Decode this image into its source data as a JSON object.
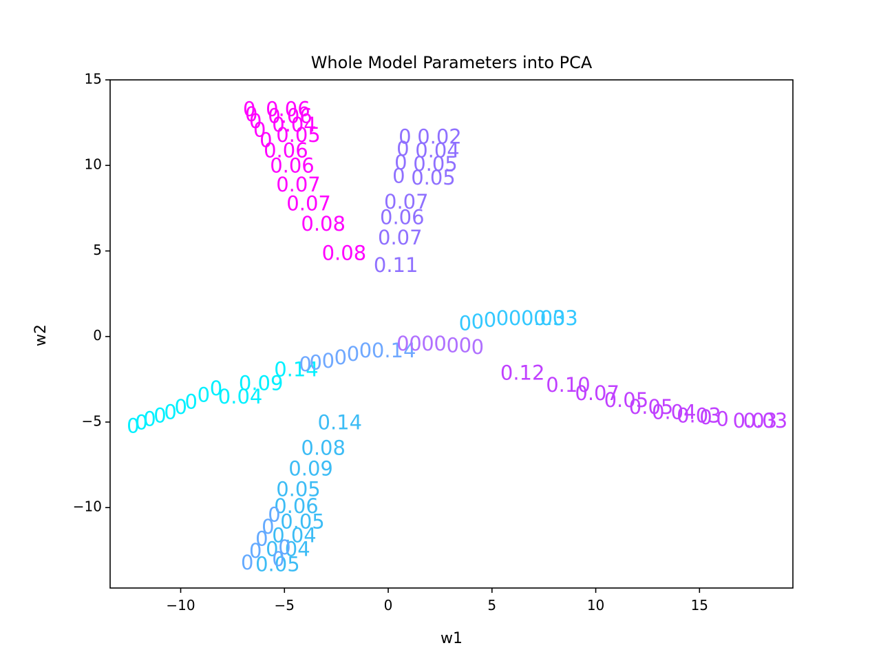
{
  "chart_data": {
    "type": "scatter",
    "title": "Whole Model Parameters into PCA",
    "xlabel": "w1",
    "ylabel": "w2",
    "xlim": [
      -13.4,
      19.5
    ],
    "ylim": [
      -14.7,
      15.0
    ],
    "xticks": [
      -10,
      -5,
      0,
      5,
      10,
      15
    ],
    "xtick_labels": [
      "−10",
      "−5",
      "0",
      "5",
      "10",
      "15"
    ],
    "yticks": [
      -10,
      -5,
      0,
      5,
      10,
      15
    ],
    "ytick_labels": [
      "−10",
      "−5",
      "0",
      "5",
      "10",
      "15"
    ],
    "grid": false,
    "legend": "none",
    "marker": "text labels",
    "series": [
      {
        "color": "#ff00ff",
        "points": [
          {
            "x": -7.0,
            "y": 13.2,
            "label": "0"
          },
          {
            "x": -6.9,
            "y": 12.9,
            "label": "0"
          },
          {
            "x": -6.7,
            "y": 12.5,
            "label": "0"
          },
          {
            "x": -6.5,
            "y": 12.0,
            "label": "0"
          },
          {
            "x": -6.2,
            "y": 11.4,
            "label": "0"
          },
          {
            "x": -5.9,
            "y": 13.2,
            "label": "0.06"
          },
          {
            "x": -5.8,
            "y": 12.8,
            "label": "0.06"
          },
          {
            "x": -5.6,
            "y": 12.3,
            "label": "0.04"
          },
          {
            "x": -5.4,
            "y": 11.7,
            "label": "0.05"
          },
          {
            "x": -6.0,
            "y": 10.8,
            "label": "0.06"
          },
          {
            "x": -5.7,
            "y": 9.9,
            "label": "0.06"
          },
          {
            "x": -5.4,
            "y": 8.8,
            "label": "0.07"
          },
          {
            "x": -4.9,
            "y": 7.7,
            "label": "0.07"
          },
          {
            "x": -4.2,
            "y": 6.5,
            "label": "0.08"
          },
          {
            "x": -3.2,
            "y": 4.8,
            "label": "0.08"
          }
        ]
      },
      {
        "color": "#8f70ff",
        "points": [
          {
            "x": 0.5,
            "y": 11.6,
            "label": "0"
          },
          {
            "x": 0.4,
            "y": 10.9,
            "label": "0"
          },
          {
            "x": 0.3,
            "y": 10.1,
            "label": "0"
          },
          {
            "x": 0.2,
            "y": 9.3,
            "label": "0"
          },
          {
            "x": 1.4,
            "y": 11.6,
            "label": "0.02"
          },
          {
            "x": 1.3,
            "y": 10.8,
            "label": "0.04"
          },
          {
            "x": 1.2,
            "y": 10.0,
            "label": "0.05"
          },
          {
            "x": 1.1,
            "y": 9.2,
            "label": "0.05"
          },
          {
            "x": -0.2,
            "y": 7.8,
            "label": "0.07"
          },
          {
            "x": -0.4,
            "y": 6.9,
            "label": "0.06"
          },
          {
            "x": -0.5,
            "y": 5.7,
            "label": "0.07"
          },
          {
            "x": -0.7,
            "y": 4.1,
            "label": "0.11"
          }
        ]
      },
      {
        "color": "#00f0ff",
        "points": [
          {
            "x": -12.6,
            "y": -5.3,
            "label": "0"
          },
          {
            "x": -12.2,
            "y": -5.1,
            "label": "0"
          },
          {
            "x": -11.8,
            "y": -4.9,
            "label": "0"
          },
          {
            "x": -11.3,
            "y": -4.7,
            "label": "0"
          },
          {
            "x": -10.8,
            "y": -4.5,
            "label": "0"
          },
          {
            "x": -10.3,
            "y": -4.2,
            "label": "0"
          },
          {
            "x": -9.8,
            "y": -3.9,
            "label": "0"
          },
          {
            "x": -9.2,
            "y": -3.5,
            "label": "0"
          },
          {
            "x": -8.6,
            "y": -3.1,
            "label": "0"
          },
          {
            "x": -8.2,
            "y": -3.6,
            "label": "0.04"
          },
          {
            "x": -7.2,
            "y": -2.8,
            "label": "0.09"
          },
          {
            "x": -5.5,
            "y": -2.0,
            "label": "0.14"
          }
        ]
      },
      {
        "color": "#6fa8ff",
        "points": [
          {
            "x": -4.3,
            "y": -1.7,
            "label": "0"
          },
          {
            "x": -3.8,
            "y": -1.6,
            "label": "0"
          },
          {
            "x": -3.2,
            "y": -1.5,
            "label": "0"
          },
          {
            "x": -2.6,
            "y": -1.3,
            "label": "0"
          },
          {
            "x": -2.0,
            "y": -1.1,
            "label": "0"
          },
          {
            "x": -1.4,
            "y": -0.9,
            "label": "0"
          },
          {
            "x": -0.8,
            "y": -0.9,
            "label": "0.14"
          }
        ]
      },
      {
        "color": "#b070ff",
        "points": [
          {
            "x": 0.4,
            "y": -0.5,
            "label": "0"
          },
          {
            "x": 1.0,
            "y": -0.5,
            "label": "0"
          },
          {
            "x": 1.6,
            "y": -0.5,
            "label": "0"
          },
          {
            "x": 2.2,
            "y": -0.5,
            "label": "0"
          },
          {
            "x": 2.8,
            "y": -0.6,
            "label": "0"
          },
          {
            "x": 3.4,
            "y": -0.6,
            "label": "0"
          },
          {
            "x": 4.0,
            "y": -0.7,
            "label": "0"
          }
        ]
      },
      {
        "color": "#33c8ff",
        "points": [
          {
            "x": 3.4,
            "y": 0.7,
            "label": "0"
          },
          {
            "x": 4.0,
            "y": 0.8,
            "label": "0"
          },
          {
            "x": 4.6,
            "y": 0.9,
            "label": "0"
          },
          {
            "x": 5.2,
            "y": 1.0,
            "label": "0"
          },
          {
            "x": 5.8,
            "y": 1.0,
            "label": "0"
          },
          {
            "x": 6.4,
            "y": 1.0,
            "label": "0.03"
          },
          {
            "x": 7.0,
            "y": 1.0,
            "label": "0.03"
          }
        ]
      },
      {
        "color": "#3cbcf5",
        "points": [
          {
            "x": -3.4,
            "y": -5.1,
            "label": "0.14"
          },
          {
            "x": -4.2,
            "y": -6.6,
            "label": "0.08"
          },
          {
            "x": -4.8,
            "y": -7.8,
            "label": "0.09"
          },
          {
            "x": -5.4,
            "y": -9.0,
            "label": "0.05"
          },
          {
            "x": -5.5,
            "y": -10.0,
            "label": "0.06"
          },
          {
            "x": -5.2,
            "y": -10.9,
            "label": "0.05"
          },
          {
            "x": -5.6,
            "y": -11.7,
            "label": "0.04"
          },
          {
            "x": -5.9,
            "y": -12.5,
            "label": "0.04"
          },
          {
            "x": -6.4,
            "y": -13.4,
            "label": "0.05"
          }
        ]
      },
      {
        "color": "#64aaff",
        "points": [
          {
            "x": -5.8,
            "y": -10.5,
            "label": "0"
          },
          {
            "x": -6.1,
            "y": -11.2,
            "label": "0"
          },
          {
            "x": -6.4,
            "y": -11.9,
            "label": "0"
          },
          {
            "x": -6.7,
            "y": -12.6,
            "label": "0"
          },
          {
            "x": -7.1,
            "y": -13.3,
            "label": "0"
          },
          {
            "x": -5.3,
            "y": -12.4,
            "label": "0"
          },
          {
            "x": -5.6,
            "y": -13.1,
            "label": "0"
          }
        ]
      },
      {
        "color": "#c040ff",
        "points": [
          {
            "x": 5.4,
            "y": -2.2,
            "label": "0.12"
          },
          {
            "x": 7.6,
            "y": -2.9,
            "label": "0.10"
          },
          {
            "x": 9.0,
            "y": -3.4,
            "label": "0.07"
          },
          {
            "x": 10.4,
            "y": -3.8,
            "label": "0.05"
          },
          {
            "x": 11.6,
            "y": -4.2,
            "label": "0.05"
          },
          {
            "x": 12.7,
            "y": -4.5,
            "label": "0.04"
          },
          {
            "x": 13.9,
            "y": -4.7,
            "label": "0.03"
          },
          {
            "x": 15.0,
            "y": -4.8,
            "label": "0"
          },
          {
            "x": 15.8,
            "y": -4.9,
            "label": "0"
          },
          {
            "x": 16.6,
            "y": -5.0,
            "label": "0.03"
          },
          {
            "x": 17.1,
            "y": -5.0,
            "label": "0.03"
          }
        ]
      }
    ]
  }
}
